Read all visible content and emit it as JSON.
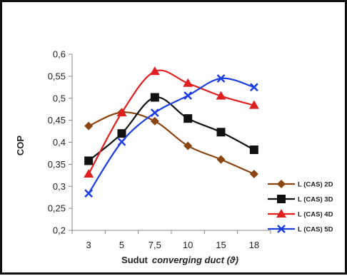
{
  "chart_data": {
    "type": "line",
    "title": "",
    "xlabel": "Sudut",
    "xlabel_italic": "converging duct (ϑ)",
    "ylabel": "COP",
    "categories": [
      "3",
      "5",
      "7,5",
      "10",
      "15",
      "18"
    ],
    "y_ticks": [
      "0,2",
      "0,25",
      "0,3",
      "0,35",
      "0,4",
      "0,45",
      "0,5",
      "0,55",
      "0,6"
    ],
    "ylim": [
      0.2,
      0.6
    ],
    "grid": false,
    "legend_position": "right",
    "series": [
      {
        "name": "L (CAS) 2D",
        "color": "#8B4513",
        "marker": "diamond",
        "values": [
          0.437,
          0.468,
          0.448,
          0.392,
          0.361,
          0.328
        ]
      },
      {
        "name": "L (CAS) 3D",
        "color": "#111111",
        "marker": "square",
        "values": [
          0.358,
          0.42,
          0.502,
          0.454,
          0.423,
          0.383
        ]
      },
      {
        "name": "L (CAS) 4D",
        "color": "#E02020",
        "marker": "triangle",
        "values": [
          0.328,
          0.467,
          0.561,
          0.534,
          0.505,
          0.484
        ]
      },
      {
        "name": "L (CAS) 5D",
        "color": "#1E3FE0",
        "marker": "x",
        "values": [
          0.284,
          0.401,
          0.467,
          0.506,
          0.545,
          0.525
        ]
      }
    ]
  }
}
